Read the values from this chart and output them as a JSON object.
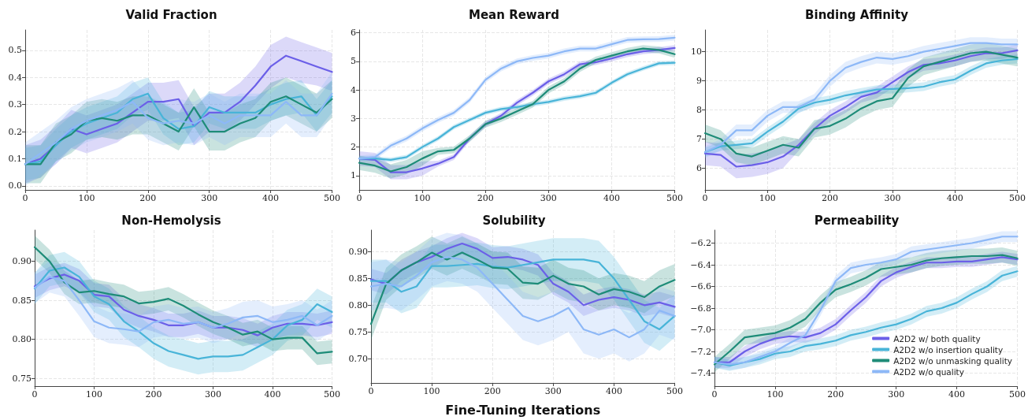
{
  "chart_data": [
    {
      "type": "line",
      "title": "Valid Fraction",
      "x": [
        0,
        25,
        50,
        75,
        100,
        125,
        150,
        175,
        200,
        225,
        250,
        275,
        300,
        325,
        350,
        375,
        400,
        425,
        450,
        475,
        500
      ],
      "xlim": [
        0,
        500
      ],
      "xticks": [
        0,
        100,
        200,
        300,
        400,
        500
      ],
      "ylim": [
        -0.015,
        0.575
      ],
      "yticks": [
        {
          "value": 0,
          "label": "0.0"
        },
        {
          "value": 0.1,
          "label": "0.1"
        },
        {
          "value": 0.2,
          "label": "0.2"
        },
        {
          "value": 0.3,
          "label": "0.3"
        },
        {
          "value": 0.4,
          "label": "0.4"
        },
        {
          "value": 0.5,
          "label": "0.5"
        }
      ],
      "grid": true,
      "legend": false,
      "series": [
        {
          "color": "#6b5fe8",
          "values": [
            0.08,
            0.1,
            0.15,
            0.21,
            0.19,
            0.21,
            0.23,
            0.27,
            0.31,
            0.31,
            0.32,
            0.22,
            0.27,
            0.27,
            0.31,
            0.37,
            0.44,
            0.48,
            0.46,
            0.44,
            0.42
          ],
          "lower": [
            0.01,
            0.03,
            0.08,
            0.14,
            0.12,
            0.14,
            0.16,
            0.2,
            0.24,
            0.24,
            0.25,
            0.15,
            0.2,
            0.2,
            0.24,
            0.3,
            0.36,
            0.4,
            0.38,
            0.37,
            0.35
          ],
          "upper": [
            0.15,
            0.17,
            0.22,
            0.28,
            0.26,
            0.28,
            0.3,
            0.34,
            0.38,
            0.38,
            0.39,
            0.29,
            0.34,
            0.34,
            0.38,
            0.44,
            0.52,
            0.55,
            0.53,
            0.51,
            0.49
          ]
        },
        {
          "color": "#48b4d8",
          "values": [
            0.08,
            0.09,
            0.15,
            0.2,
            0.23,
            0.25,
            0.27,
            0.32,
            0.34,
            0.25,
            0.21,
            0.22,
            0.29,
            0.27,
            0.27,
            0.27,
            0.3,
            0.32,
            0.33,
            0.26,
            0.33
          ],
          "lower": [
            0.02,
            0.03,
            0.09,
            0.14,
            0.17,
            0.19,
            0.21,
            0.26,
            0.28,
            0.19,
            0.15,
            0.16,
            0.23,
            0.21,
            0.21,
            0.21,
            0.24,
            0.26,
            0.27,
            0.2,
            0.27
          ],
          "upper": [
            0.14,
            0.15,
            0.21,
            0.26,
            0.29,
            0.31,
            0.33,
            0.38,
            0.4,
            0.31,
            0.27,
            0.28,
            0.35,
            0.33,
            0.33,
            0.33,
            0.36,
            0.38,
            0.39,
            0.32,
            0.39
          ]
        },
        {
          "color": "#1e8c78",
          "values": [
            0.08,
            0.08,
            0.16,
            0.19,
            0.24,
            0.25,
            0.24,
            0.26,
            0.26,
            0.23,
            0.2,
            0.29,
            0.2,
            0.2,
            0.23,
            0.25,
            0.31,
            0.33,
            0.3,
            0.27,
            0.32
          ],
          "lower": [
            0.01,
            0.01,
            0.09,
            0.12,
            0.17,
            0.18,
            0.17,
            0.19,
            0.19,
            0.16,
            0.13,
            0.22,
            0.13,
            0.13,
            0.16,
            0.18,
            0.24,
            0.26,
            0.23,
            0.2,
            0.25
          ],
          "upper": [
            0.15,
            0.15,
            0.23,
            0.26,
            0.31,
            0.32,
            0.31,
            0.33,
            0.33,
            0.3,
            0.27,
            0.36,
            0.27,
            0.27,
            0.3,
            0.32,
            0.38,
            0.4,
            0.37,
            0.34,
            0.39
          ]
        },
        {
          "color": "#8db8f7",
          "values": [
            0.08,
            0.12,
            0.16,
            0.21,
            0.24,
            0.26,
            0.28,
            0.31,
            0.25,
            0.23,
            0.24,
            0.23,
            0.26,
            0.23,
            0.26,
            0.26,
            0.26,
            0.31,
            0.26,
            0.26,
            0.34
          ],
          "lower": [
            0.0,
            0.04,
            0.08,
            0.13,
            0.16,
            0.18,
            0.2,
            0.23,
            0.17,
            0.15,
            0.16,
            0.15,
            0.18,
            0.15,
            0.18,
            0.18,
            0.18,
            0.23,
            0.18,
            0.18,
            0.26
          ],
          "upper": [
            0.16,
            0.2,
            0.24,
            0.29,
            0.32,
            0.34,
            0.36,
            0.39,
            0.33,
            0.31,
            0.32,
            0.31,
            0.34,
            0.31,
            0.34,
            0.34,
            0.34,
            0.39,
            0.34,
            0.34,
            0.42
          ]
        }
      ]
    },
    {
      "type": "line",
      "title": "Mean Reward",
      "x": [
        0,
        25,
        50,
        75,
        100,
        125,
        150,
        175,
        200,
        225,
        250,
        275,
        300,
        325,
        350,
        375,
        400,
        425,
        450,
        475,
        500
      ],
      "xlim": [
        0,
        500
      ],
      "xticks": [
        0,
        100,
        200,
        300,
        400,
        500
      ],
      "ylim": [
        0.5,
        6.1
      ],
      "yticks": [
        1,
        2,
        3,
        4,
        5,
        6
      ],
      "grid": true,
      "legend": false,
      "series": [
        {
          "color": "#6b5fe8",
          "values": [
            1.6,
            1.55,
            1.12,
            1.12,
            1.25,
            1.42,
            1.65,
            2.3,
            2.8,
            3.1,
            3.55,
            3.9,
            4.3,
            4.55,
            4.9,
            4.97,
            5.1,
            5.25,
            5.35,
            5.4,
            5.47
          ],
          "lower": [
            1.35,
            1.3,
            0.87,
            0.87,
            1.0,
            1.32,
            1.55,
            2.2,
            2.7,
            3.0,
            3.45,
            3.8,
            4.2,
            4.45,
            4.8,
            4.87,
            5.0,
            5.15,
            5.25,
            5.3,
            5.37
          ],
          "upper": [
            1.85,
            1.8,
            1.37,
            1.37,
            1.5,
            1.52,
            1.75,
            2.4,
            2.9,
            3.2,
            3.65,
            4.0,
            4.4,
            4.65,
            5.0,
            5.07,
            5.2,
            5.35,
            5.45,
            5.5,
            5.57
          ]
        },
        {
          "color": "#48b4d8",
          "values": [
            1.6,
            1.6,
            1.55,
            1.65,
            2.0,
            2.3,
            2.7,
            2.95,
            3.2,
            3.33,
            3.4,
            3.5,
            3.58,
            3.7,
            3.78,
            3.9,
            4.25,
            4.55,
            4.75,
            4.93,
            4.95
          ],
          "lower": [
            1.52,
            1.52,
            1.47,
            1.57,
            1.92,
            2.22,
            2.62,
            2.87,
            3.12,
            3.25,
            3.32,
            3.42,
            3.5,
            3.62,
            3.7,
            3.82,
            4.17,
            4.47,
            4.67,
            4.85,
            4.87
          ],
          "upper": [
            1.68,
            1.68,
            1.63,
            1.73,
            2.08,
            2.38,
            2.78,
            3.03,
            3.28,
            3.41,
            3.48,
            3.58,
            3.66,
            3.78,
            3.86,
            3.98,
            4.33,
            4.63,
            4.83,
            5.01,
            5.03
          ]
        },
        {
          "color": "#1e8c78",
          "values": [
            1.45,
            1.35,
            1.15,
            1.3,
            1.6,
            1.85,
            1.9,
            2.3,
            2.8,
            3.0,
            3.25,
            3.5,
            4.0,
            4.3,
            4.75,
            5.05,
            5.2,
            5.35,
            5.45,
            5.4,
            5.25
          ],
          "lower": [
            1.2,
            1.1,
            0.9,
            1.05,
            1.35,
            1.73,
            1.78,
            2.18,
            2.68,
            2.88,
            3.13,
            3.38,
            3.88,
            4.18,
            4.63,
            4.93,
            5.08,
            5.23,
            5.33,
            5.28,
            5.13
          ],
          "upper": [
            1.7,
            1.6,
            1.4,
            1.55,
            1.85,
            1.97,
            2.02,
            2.42,
            2.92,
            3.12,
            3.37,
            3.62,
            4.12,
            4.42,
            4.87,
            5.17,
            5.32,
            5.47,
            5.57,
            5.52,
            5.37
          ]
        },
        {
          "color": "#8db8f7",
          "values": [
            1.6,
            1.65,
            2.05,
            2.3,
            2.65,
            2.95,
            3.2,
            3.65,
            4.35,
            4.75,
            5.0,
            5.12,
            5.2,
            5.35,
            5.45,
            5.45,
            5.6,
            5.75,
            5.77,
            5.78,
            5.83
          ],
          "lower": [
            1.5,
            1.55,
            1.95,
            2.2,
            2.55,
            2.85,
            3.1,
            3.55,
            4.25,
            4.65,
            4.9,
            5.02,
            5.1,
            5.25,
            5.35,
            5.35,
            5.5,
            5.65,
            5.67,
            5.68,
            5.73
          ],
          "upper": [
            1.7,
            1.75,
            2.15,
            2.4,
            2.75,
            3.05,
            3.3,
            3.75,
            4.45,
            4.85,
            5.1,
            5.22,
            5.3,
            5.45,
            5.55,
            5.55,
            5.7,
            5.85,
            5.87,
            5.88,
            5.93
          ]
        }
      ]
    },
    {
      "type": "line",
      "title": "Binding Affinity",
      "x": [
        0,
        25,
        50,
        75,
        100,
        125,
        150,
        175,
        200,
        225,
        250,
        275,
        300,
        325,
        350,
        375,
        400,
        425,
        450,
        475,
        500
      ],
      "xlim": [
        0,
        500
      ],
      "xticks": [
        0,
        100,
        200,
        300,
        400,
        500
      ],
      "ylim": [
        5.25,
        10.75
      ],
      "yticks": [
        6,
        7,
        8,
        9,
        10
      ],
      "grid": true,
      "legend": false,
      "series": [
        {
          "color": "#6b5fe8",
          "values": [
            6.5,
            6.45,
            6.05,
            6.1,
            6.2,
            6.4,
            6.8,
            7.35,
            7.8,
            8.1,
            8.45,
            8.6,
            8.95,
            9.3,
            9.55,
            9.6,
            9.7,
            9.85,
            9.95,
            9.95,
            10.05
          ],
          "lower": [
            6.1,
            6.05,
            5.65,
            5.7,
            5.8,
            6.0,
            6.6,
            7.15,
            7.6,
            7.9,
            8.25,
            8.4,
            8.75,
            9.1,
            9.35,
            9.4,
            9.5,
            9.65,
            9.75,
            9.75,
            9.85
          ],
          "upper": [
            6.9,
            6.85,
            6.45,
            6.5,
            6.6,
            6.8,
            7.0,
            7.55,
            8.0,
            8.3,
            8.65,
            8.8,
            9.15,
            9.5,
            9.75,
            9.8,
            9.9,
            10.05,
            10.15,
            10.15,
            10.25
          ]
        },
        {
          "color": "#48b4d8",
          "values": [
            6.55,
            6.75,
            6.8,
            6.85,
            7.25,
            7.6,
            8.05,
            8.25,
            8.35,
            8.5,
            8.6,
            8.7,
            8.72,
            8.75,
            8.8,
            8.95,
            9.05,
            9.35,
            9.6,
            9.7,
            9.75
          ],
          "lower": [
            6.4,
            6.6,
            6.65,
            6.7,
            7.1,
            7.45,
            7.9,
            8.1,
            8.2,
            8.35,
            8.45,
            8.55,
            8.57,
            8.6,
            8.65,
            8.8,
            8.9,
            9.2,
            9.45,
            9.55,
            9.6
          ],
          "upper": [
            6.7,
            6.9,
            6.95,
            7.0,
            7.4,
            7.75,
            8.2,
            8.4,
            8.5,
            8.65,
            8.75,
            8.85,
            8.87,
            8.9,
            8.95,
            9.1,
            9.2,
            9.5,
            9.75,
            9.85,
            9.9
          ]
        },
        {
          "color": "#1e8c78",
          "values": [
            7.2,
            7.0,
            6.5,
            6.4,
            6.6,
            6.8,
            6.7,
            7.35,
            7.45,
            7.7,
            8.05,
            8.3,
            8.4,
            9.1,
            9.5,
            9.65,
            9.8,
            9.95,
            10.0,
            9.9,
            9.8
          ],
          "lower": [
            6.9,
            6.7,
            6.2,
            6.1,
            6.3,
            6.5,
            6.4,
            7.05,
            7.15,
            7.4,
            7.75,
            8.0,
            8.1,
            8.8,
            9.2,
            9.35,
            9.5,
            9.65,
            9.7,
            9.6,
            9.5
          ],
          "upper": [
            7.5,
            7.3,
            6.8,
            6.7,
            6.9,
            7.1,
            7.0,
            7.65,
            7.75,
            8.0,
            8.35,
            8.6,
            8.7,
            9.4,
            9.8,
            9.95,
            10.1,
            10.25,
            10.3,
            10.2,
            10.1
          ]
        },
        {
          "color": "#8db8f7",
          "values": [
            6.55,
            6.8,
            7.3,
            7.3,
            7.8,
            8.1,
            8.1,
            8.35,
            9.0,
            9.45,
            9.65,
            9.8,
            9.75,
            9.85,
            10.0,
            10.1,
            10.2,
            10.3,
            10.3,
            10.25,
            10.25
          ],
          "lower": [
            6.35,
            6.6,
            7.1,
            7.1,
            7.6,
            7.9,
            7.9,
            8.15,
            8.8,
            9.25,
            9.45,
            9.6,
            9.55,
            9.65,
            9.8,
            9.9,
            10.0,
            10.1,
            10.1,
            10.05,
            10.05
          ],
          "upper": [
            6.75,
            7.0,
            7.5,
            7.5,
            8.0,
            8.3,
            8.3,
            8.55,
            9.2,
            9.65,
            9.85,
            10.0,
            9.95,
            10.05,
            10.2,
            10.3,
            10.4,
            10.5,
            10.5,
            10.45,
            10.45
          ]
        }
      ]
    },
    {
      "type": "line",
      "title": "Non-Hemolysis",
      "x": [
        0,
        25,
        50,
        75,
        100,
        125,
        150,
        175,
        200,
        225,
        250,
        275,
        300,
        325,
        350,
        375,
        400,
        425,
        450,
        475,
        500
      ],
      "xlim": [
        0,
        500
      ],
      "xticks": [
        0,
        100,
        200,
        300,
        400,
        500
      ],
      "ylim": [
        0.74,
        0.94
      ],
      "yticks": [
        {
          "value": 0.75,
          "label": "0.75"
        },
        {
          "value": 0.8,
          "label": "0.80"
        },
        {
          "value": 0.85,
          "label": "0.85"
        },
        {
          "value": 0.9,
          "label": "0.90"
        }
      ],
      "grid": true,
      "legend": false,
      "series": [
        {
          "color": "#6b5fe8",
          "values": [
            0.868,
            0.878,
            0.883,
            0.875,
            0.857,
            0.855,
            0.838,
            0.83,
            0.825,
            0.818,
            0.818,
            0.822,
            0.815,
            0.815,
            0.812,
            0.805,
            0.815,
            0.82,
            0.82,
            0.818,
            0.822
          ],
          "lower": [
            0.853,
            0.863,
            0.868,
            0.86,
            0.842,
            0.84,
            0.823,
            0.815,
            0.81,
            0.803,
            0.803,
            0.807,
            0.8,
            0.8,
            0.797,
            0.79,
            0.8,
            0.805,
            0.805,
            0.803,
            0.807
          ],
          "upper": [
            0.883,
            0.893,
            0.898,
            0.89,
            0.872,
            0.87,
            0.853,
            0.845,
            0.84,
            0.833,
            0.833,
            0.837,
            0.83,
            0.83,
            0.827,
            0.82,
            0.83,
            0.835,
            0.835,
            0.833,
            0.837
          ]
        },
        {
          "color": "#48b4d8",
          "values": [
            0.865,
            0.888,
            0.892,
            0.88,
            0.855,
            0.845,
            0.823,
            0.81,
            0.795,
            0.785,
            0.78,
            0.775,
            0.778,
            0.778,
            0.78,
            0.79,
            0.8,
            0.818,
            0.825,
            0.845,
            0.835
          ],
          "lower": [
            0.845,
            0.868,
            0.872,
            0.86,
            0.835,
            0.825,
            0.803,
            0.79,
            0.775,
            0.765,
            0.76,
            0.755,
            0.758,
            0.758,
            0.76,
            0.77,
            0.78,
            0.798,
            0.805,
            0.825,
            0.815
          ],
          "upper": [
            0.885,
            0.908,
            0.912,
            0.9,
            0.875,
            0.865,
            0.843,
            0.83,
            0.815,
            0.805,
            0.8,
            0.795,
            0.798,
            0.798,
            0.8,
            0.81,
            0.82,
            0.838,
            0.845,
            0.865,
            0.855
          ]
        },
        {
          "color": "#1e8c78",
          "values": [
            0.918,
            0.9,
            0.873,
            0.86,
            0.862,
            0.858,
            0.855,
            0.846,
            0.848,
            0.852,
            0.843,
            0.832,
            0.822,
            0.815,
            0.806,
            0.81,
            0.8,
            0.802,
            0.802,
            0.782,
            0.784
          ],
          "lower": [
            0.903,
            0.885,
            0.858,
            0.845,
            0.847,
            0.843,
            0.84,
            0.831,
            0.833,
            0.837,
            0.828,
            0.817,
            0.807,
            0.8,
            0.791,
            0.795,
            0.785,
            0.787,
            0.787,
            0.767,
            0.769
          ],
          "upper": [
            0.933,
            0.915,
            0.888,
            0.875,
            0.877,
            0.873,
            0.87,
            0.861,
            0.863,
            0.867,
            0.858,
            0.847,
            0.837,
            0.83,
            0.821,
            0.825,
            0.815,
            0.817,
            0.817,
            0.797,
            0.799
          ]
        },
        {
          "color": "#8db8f7",
          "values": [
            0.866,
            0.88,
            0.875,
            0.85,
            0.823,
            0.815,
            0.813,
            0.81,
            0.822,
            0.825,
            0.82,
            0.822,
            0.815,
            0.82,
            0.828,
            0.83,
            0.822,
            0.825,
            0.83,
            0.818,
            0.83
          ],
          "lower": [
            0.846,
            0.86,
            0.855,
            0.83,
            0.803,
            0.795,
            0.793,
            0.79,
            0.802,
            0.805,
            0.8,
            0.802,
            0.795,
            0.8,
            0.808,
            0.81,
            0.802,
            0.805,
            0.81,
            0.798,
            0.81
          ],
          "upper": [
            0.886,
            0.9,
            0.895,
            0.87,
            0.843,
            0.835,
            0.833,
            0.83,
            0.842,
            0.845,
            0.84,
            0.842,
            0.835,
            0.84,
            0.848,
            0.85,
            0.842,
            0.845,
            0.85,
            0.838,
            0.85
          ]
        }
      ]
    },
    {
      "type": "line",
      "title": "Solubility",
      "xlabel": "Fine-Tuning Iterations",
      "x": [
        0,
        25,
        50,
        75,
        100,
        125,
        150,
        175,
        200,
        225,
        250,
        275,
        300,
        325,
        350,
        375,
        400,
        425,
        450,
        475,
        500
      ],
      "xlim": [
        0,
        500
      ],
      "xticks": [
        0,
        100,
        200,
        300,
        400,
        500
      ],
      "ylim": [
        0.655,
        0.94
      ],
      "yticks": [
        {
          "value": 0.7,
          "label": "0.70"
        },
        {
          "value": 0.75,
          "label": "0.75"
        },
        {
          "value": 0.8,
          "label": "0.80"
        },
        {
          "value": 0.85,
          "label": "0.85"
        },
        {
          "value": 0.9,
          "label": "0.90"
        }
      ],
      "grid": true,
      "legend": false,
      "series": [
        {
          "color": "#6b5fe8",
          "values": [
            0.848,
            0.84,
            0.865,
            0.88,
            0.89,
            0.905,
            0.915,
            0.905,
            0.888,
            0.89,
            0.885,
            0.875,
            0.84,
            0.825,
            0.8,
            0.81,
            0.815,
            0.81,
            0.8,
            0.805,
            0.797
          ],
          "lower": [
            0.828,
            0.82,
            0.845,
            0.86,
            0.87,
            0.885,
            0.895,
            0.885,
            0.868,
            0.87,
            0.865,
            0.855,
            0.82,
            0.805,
            0.78,
            0.79,
            0.795,
            0.79,
            0.78,
            0.785,
            0.777
          ],
          "upper": [
            0.868,
            0.86,
            0.885,
            0.9,
            0.91,
            0.925,
            0.935,
            0.925,
            0.908,
            0.91,
            0.905,
            0.895,
            0.86,
            0.845,
            0.82,
            0.83,
            0.835,
            0.83,
            0.82,
            0.825,
            0.817
          ]
        },
        {
          "color": "#48b4d8",
          "values": [
            0.845,
            0.845,
            0.825,
            0.835,
            0.873,
            0.873,
            0.875,
            0.877,
            0.872,
            0.87,
            0.875,
            0.88,
            0.885,
            0.885,
            0.885,
            0.88,
            0.85,
            0.81,
            0.77,
            0.755,
            0.78
          ],
          "lower": [
            0.805,
            0.805,
            0.785,
            0.795,
            0.833,
            0.833,
            0.835,
            0.837,
            0.832,
            0.83,
            0.835,
            0.84,
            0.845,
            0.845,
            0.845,
            0.84,
            0.81,
            0.77,
            0.73,
            0.715,
            0.74
          ],
          "upper": [
            0.885,
            0.885,
            0.865,
            0.875,
            0.913,
            0.913,
            0.915,
            0.917,
            0.912,
            0.91,
            0.915,
            0.92,
            0.925,
            0.925,
            0.925,
            0.92,
            0.89,
            0.85,
            0.81,
            0.795,
            0.82
          ]
        },
        {
          "color": "#1e8c78",
          "values": [
            0.765,
            0.84,
            0.865,
            0.88,
            0.898,
            0.885,
            0.898,
            0.885,
            0.87,
            0.868,
            0.842,
            0.84,
            0.855,
            0.84,
            0.835,
            0.82,
            0.83,
            0.825,
            0.815,
            0.835,
            0.847
          ],
          "lower": [
            0.735,
            0.81,
            0.835,
            0.85,
            0.868,
            0.855,
            0.868,
            0.855,
            0.84,
            0.838,
            0.812,
            0.81,
            0.825,
            0.81,
            0.805,
            0.79,
            0.8,
            0.795,
            0.785,
            0.805,
            0.817
          ],
          "upper": [
            0.795,
            0.87,
            0.895,
            0.91,
            0.928,
            0.915,
            0.928,
            0.915,
            0.9,
            0.898,
            0.872,
            0.87,
            0.885,
            0.87,
            0.865,
            0.85,
            0.86,
            0.855,
            0.845,
            0.865,
            0.877
          ]
        },
        {
          "color": "#8db8f7",
          "values": [
            0.835,
            0.84,
            0.835,
            0.855,
            0.88,
            0.89,
            0.885,
            0.87,
            0.84,
            0.81,
            0.78,
            0.77,
            0.78,
            0.795,
            0.755,
            0.745,
            0.755,
            0.74,
            0.755,
            0.79,
            0.78
          ],
          "lower": [
            0.79,
            0.795,
            0.79,
            0.81,
            0.835,
            0.845,
            0.84,
            0.825,
            0.795,
            0.765,
            0.735,
            0.725,
            0.735,
            0.75,
            0.71,
            0.7,
            0.71,
            0.695,
            0.71,
            0.745,
            0.735
          ],
          "upper": [
            0.88,
            0.885,
            0.88,
            0.9,
            0.925,
            0.935,
            0.93,
            0.915,
            0.885,
            0.855,
            0.825,
            0.815,
            0.825,
            0.84,
            0.8,
            0.79,
            0.8,
            0.785,
            0.8,
            0.835,
            0.825
          ]
        }
      ]
    },
    {
      "type": "line",
      "title": "Permeability",
      "x": [
        0,
        25,
        50,
        75,
        100,
        125,
        150,
        175,
        200,
        225,
        250,
        275,
        300,
        325,
        350,
        375,
        400,
        425,
        450,
        475,
        500
      ],
      "xlim": [
        0,
        500
      ],
      "xticks": [
        0,
        100,
        200,
        300,
        400,
        500
      ],
      "ylim": [
        -7.52,
        -6.08
      ],
      "yticks": [
        {
          "value": -7.4,
          "label": "−7.4"
        },
        {
          "value": -7.2,
          "label": "−7.2"
        },
        {
          "value": -7,
          "label": "−7.0"
        },
        {
          "value": -6.8,
          "label": "−6.8"
        },
        {
          "value": -6.6,
          "label": "−6.6"
        },
        {
          "value": -6.4,
          "label": "−6.4"
        },
        {
          "value": -6.2,
          "label": "−6.2"
        }
      ],
      "grid": true,
      "legend": "bottom right",
      "series": [
        {
          "name": "A2D2 w/ both quality",
          "color": "#6b5fe8",
          "values": [
            -7.3,
            -7.3,
            -7.2,
            -7.13,
            -7.08,
            -7.06,
            -7.07,
            -7.03,
            -6.95,
            -6.82,
            -6.7,
            -6.55,
            -6.47,
            -6.42,
            -6.38,
            -6.38,
            -6.37,
            -6.37,
            -6.35,
            -6.33,
            -6.35
          ],
          "lower": [
            -7.35,
            -7.35,
            -7.25,
            -7.18,
            -7.13,
            -7.11,
            -7.12,
            -7.08,
            -7.0,
            -6.87,
            -6.75,
            -6.6,
            -6.52,
            -6.47,
            -6.43,
            -6.43,
            -6.42,
            -6.42,
            -6.4,
            -6.38,
            -6.4
          ],
          "upper": [
            -7.25,
            -7.25,
            -7.15,
            -7.08,
            -7.03,
            -7.01,
            -7.02,
            -6.98,
            -6.9,
            -6.77,
            -6.65,
            -6.5,
            -6.42,
            -6.37,
            -6.33,
            -6.33,
            -6.32,
            -6.32,
            -6.3,
            -6.28,
            -6.3
          ]
        },
        {
          "name": "A2D2 w/o insertion quality",
          "color": "#48b4d8",
          "values": [
            -7.3,
            -7.33,
            -7.3,
            -7.27,
            -7.22,
            -7.2,
            -7.15,
            -7.13,
            -7.1,
            -7.05,
            -7.02,
            -6.98,
            -6.95,
            -6.9,
            -6.83,
            -6.8,
            -6.75,
            -6.67,
            -6.6,
            -6.5,
            -6.46
          ],
          "lower": [
            -7.35,
            -7.38,
            -7.35,
            -7.32,
            -7.27,
            -7.25,
            -7.2,
            -7.18,
            -7.15,
            -7.1,
            -7.07,
            -7.03,
            -7.0,
            -6.95,
            -6.88,
            -6.85,
            -6.8,
            -6.72,
            -6.65,
            -6.55,
            -6.51
          ],
          "upper": [
            -7.25,
            -7.28,
            -7.25,
            -7.22,
            -7.17,
            -7.15,
            -7.1,
            -7.08,
            -7.05,
            -7.0,
            -6.97,
            -6.93,
            -6.9,
            -6.85,
            -6.78,
            -6.75,
            -6.7,
            -6.62,
            -6.55,
            -6.45,
            -6.41
          ]
        },
        {
          "name": "A2D2 w/o unmasking quality",
          "color": "#1e8c78",
          "values": [
            -7.32,
            -7.2,
            -7.07,
            -7.05,
            -7.03,
            -6.98,
            -6.9,
            -6.75,
            -6.63,
            -6.58,
            -6.52,
            -6.44,
            -6.42,
            -6.4,
            -6.36,
            -6.34,
            -6.33,
            -6.32,
            -6.32,
            -6.31,
            -6.34
          ],
          "lower": [
            -7.39,
            -7.27,
            -7.14,
            -7.12,
            -7.1,
            -7.05,
            -6.97,
            -6.82,
            -6.7,
            -6.65,
            -6.59,
            -6.51,
            -6.49,
            -6.47,
            -6.43,
            -6.41,
            -6.4,
            -6.39,
            -6.39,
            -6.38,
            -6.41
          ],
          "upper": [
            -7.25,
            -7.13,
            -7.0,
            -6.98,
            -6.96,
            -6.91,
            -6.83,
            -6.68,
            -6.56,
            -6.51,
            -6.45,
            -6.37,
            -6.35,
            -6.33,
            -6.29,
            -6.27,
            -6.26,
            -6.25,
            -6.25,
            -6.24,
            -6.27
          ]
        },
        {
          "name": "A2D2 w/o quality",
          "color": "#8db8f7",
          "values": [
            -7.3,
            -7.32,
            -7.3,
            -7.25,
            -7.2,
            -7.12,
            -7.05,
            -6.82,
            -6.55,
            -6.43,
            -6.4,
            -6.38,
            -6.35,
            -6.28,
            -6.26,
            -6.24,
            -6.22,
            -6.2,
            -6.17,
            -6.14,
            -6.14
          ],
          "lower": [
            -7.35,
            -7.37,
            -7.35,
            -7.3,
            -7.25,
            -7.17,
            -7.1,
            -6.87,
            -6.6,
            -6.48,
            -6.45,
            -6.43,
            -6.4,
            -6.33,
            -6.31,
            -6.29,
            -6.27,
            -6.25,
            -6.22,
            -6.19,
            -6.19
          ],
          "upper": [
            -7.25,
            -7.27,
            -7.25,
            -7.2,
            -7.15,
            -7.07,
            -7.0,
            -6.77,
            -6.5,
            -6.38,
            -6.35,
            -6.33,
            -6.3,
            -6.23,
            -6.21,
            -6.19,
            -6.17,
            -6.15,
            -6.12,
            -6.09,
            -6.09
          ]
        }
      ]
    }
  ]
}
